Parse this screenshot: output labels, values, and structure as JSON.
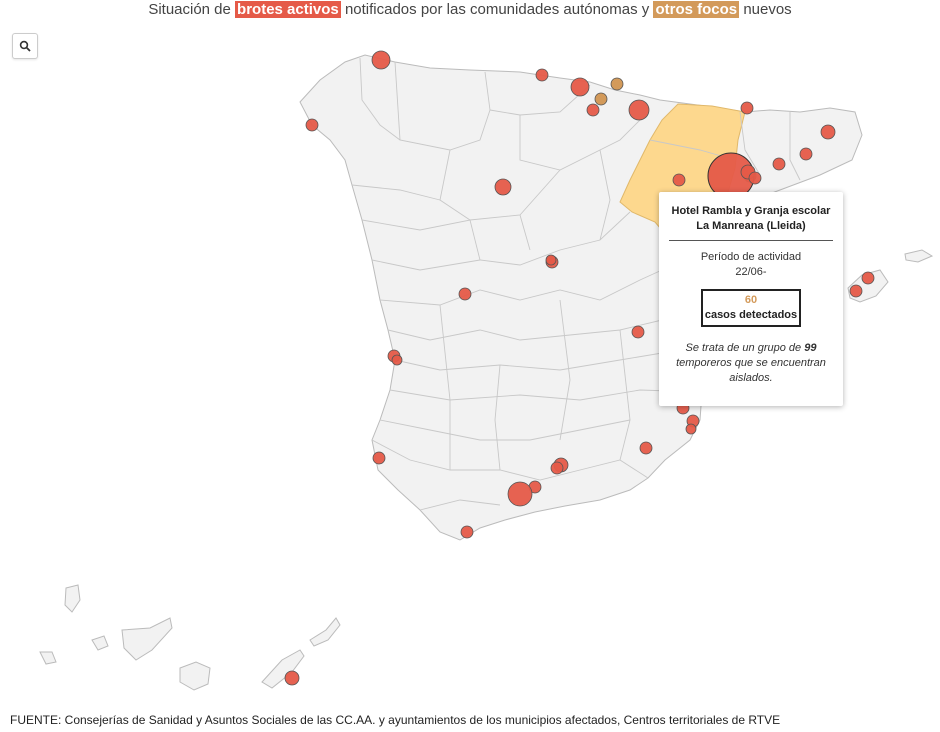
{
  "header": {
    "title_prefix": "Situación de",
    "title_active": "brotes activos",
    "title_middle": "notificados por las comunidades autónomas y",
    "title_other": "otros focos",
    "title_suffix": "nuevos"
  },
  "colors": {
    "active": "#e55a48",
    "other": "#d39a5a",
    "highlight_region": "#fdd88e",
    "land": "#f2f2f2",
    "border": "#bbbbbb"
  },
  "search": {
    "icon": "search-icon"
  },
  "tooltip": {
    "title": "Hotel Rambla y Granja escolar La Manreana (Lleida)",
    "period_label": "Período de actividad",
    "period": "22/06-",
    "count": "60",
    "count_label": "casos detectados",
    "note_pre": "Se trata de un grupo de",
    "note_bold": "99",
    "note_post": "temporeros que se encuentran aislados."
  },
  "highlighted_region": "Aragón",
  "footer": {
    "source": "FUENTE: Consejerías de Sanidad y Asuntos Sociales de las CC.AA. y ayuntamientos de los municipios afectados, Centros territoriales de RTVE"
  }
}
